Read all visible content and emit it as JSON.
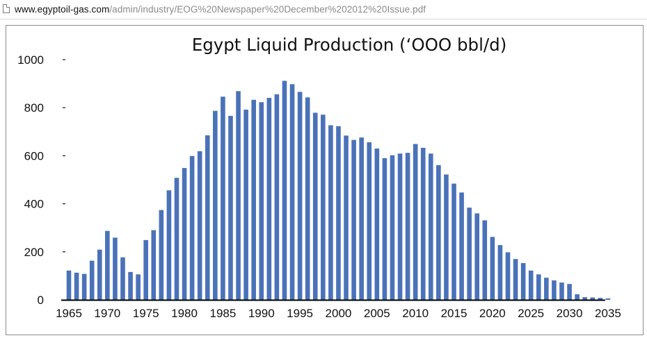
{
  "browser": {
    "url_host": "www.egyptoil-gas.com",
    "url_path": "/admin/industry/EOG%20Newspaper%20December%202012%20Issue.pdf",
    "page_icon": "document-icon"
  },
  "chart_data": {
    "type": "bar",
    "title": "Egypt Liquid Production (‘OOO bbl/d)",
    "xlabel": "",
    "ylabel": "",
    "ylim": [
      0,
      1000
    ],
    "yticks": [
      0,
      200,
      400,
      600,
      800,
      1000
    ],
    "xtick_labels": [
      "1965",
      "1970",
      "1975",
      "1980",
      "1985",
      "1990",
      "1995",
      "2000",
      "2005",
      "2010",
      "2015",
      "2020",
      "2025",
      "2030",
      "2035"
    ],
    "grid": false,
    "bar_color": "#4a72b8",
    "categories": [
      1965,
      1966,
      1967,
      1968,
      1969,
      1970,
      1971,
      1972,
      1973,
      1974,
      1975,
      1976,
      1977,
      1978,
      1979,
      1980,
      1981,
      1982,
      1983,
      1984,
      1985,
      1986,
      1987,
      1988,
      1989,
      1990,
      1991,
      1992,
      1993,
      1994,
      1995,
      1996,
      1997,
      1998,
      1999,
      2000,
      2001,
      2002,
      2003,
      2004,
      2005,
      2006,
      2007,
      2008,
      2009,
      2010,
      2011,
      2012,
      2013,
      2014,
      2015,
      2016,
      2017,
      2018,
      2019,
      2020,
      2021,
      2022,
      2023,
      2024,
      2025,
      2026,
      2027,
      2028,
      2029,
      2030,
      2031,
      2032,
      2033,
      2034,
      2035
    ],
    "values": [
      122,
      113,
      108,
      163,
      209,
      287,
      259,
      177,
      116,
      106,
      249,
      290,
      374,
      456,
      508,
      549,
      599,
      619,
      685,
      787,
      846,
      766,
      869,
      792,
      833,
      823,
      841,
      856,
      912,
      898,
      866,
      843,
      779,
      771,
      727,
      723,
      684,
      666,
      676,
      656,
      630,
      590,
      602,
      609,
      612,
      649,
      633,
      609,
      561,
      522,
      484,
      447,
      384,
      360,
      331,
      262,
      228,
      198,
      170,
      153,
      122,
      106,
      92,
      81,
      72,
      66,
      23,
      11,
      10,
      8,
      6
    ]
  }
}
